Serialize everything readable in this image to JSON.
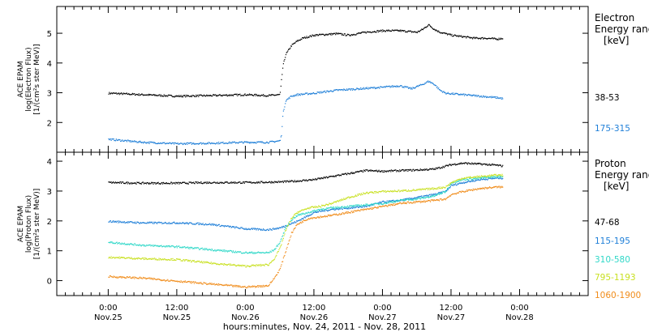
{
  "chart_data": [
    {
      "type": "scatter",
      "ylabel": [
        "ACE EPAM",
        "log(Electron Flux)",
        "[1/(cm²s ster MeV)]"
      ],
      "ylim": [
        1.0,
        5.9
      ],
      "yticks": [
        2,
        3,
        4,
        5
      ],
      "legend_title": [
        "Electron",
        "Energy range",
        "[keV]"
      ],
      "grid": false,
      "series": [
        {
          "name": "38-53",
          "color": "#000000",
          "x": [
            0,
            12,
            24,
            36,
            48,
            56,
            60,
            61,
            62,
            64,
            66,
            68,
            72,
            80,
            84,
            90,
            96,
            102,
            108,
            110,
            112,
            114,
            116,
            118,
            120,
            124,
            128,
            132,
            136,
            138
          ],
          "y": [
            3.0,
            2.95,
            2.9,
            2.92,
            2.95,
            2.92,
            2.95,
            3.9,
            4.3,
            4.6,
            4.75,
            4.85,
            4.95,
            5.0,
            4.95,
            5.05,
            5.1,
            5.1,
            5.05,
            5.15,
            5.3,
            5.15,
            5.05,
            5.0,
            4.95,
            4.9,
            4.85,
            4.85,
            4.82,
            4.85
          ]
        },
        {
          "name": "175-315",
          "color": "#1f7fd8",
          "x": [
            0,
            12,
            24,
            36,
            48,
            56,
            60,
            60.5,
            61,
            62,
            64,
            66,
            72,
            80,
            88,
            96,
            102,
            106,
            110,
            112,
            114,
            116,
            118,
            124,
            130,
            136,
            138
          ],
          "y": [
            1.45,
            1.35,
            1.3,
            1.32,
            1.35,
            1.35,
            1.4,
            1.6,
            2.3,
            2.75,
            2.9,
            2.95,
            3.0,
            3.1,
            3.15,
            3.2,
            3.25,
            3.15,
            3.3,
            3.4,
            3.3,
            3.1,
            3.0,
            2.95,
            2.9,
            2.85,
            2.82
          ]
        }
      ]
    },
    {
      "type": "scatter",
      "ylabel": [
        "ACE EPAM",
        "log(Proton Flux)",
        "[1/(cm²s ster MeV)]"
      ],
      "ylim": [
        -0.5,
        4.3
      ],
      "yticks": [
        0,
        1,
        2,
        3,
        4
      ],
      "legend_title": [
        "Proton",
        "Energy range",
        "[keV]"
      ],
      "grid": false,
      "series": [
        {
          "name": "47-68",
          "color": "#000000",
          "x": [
            0,
            12,
            24,
            36,
            48,
            60,
            66,
            72,
            84,
            90,
            96,
            108,
            114,
            120,
            124,
            130,
            136,
            138
          ],
          "y": [
            3.3,
            3.28,
            3.28,
            3.3,
            3.3,
            3.32,
            3.35,
            3.4,
            3.6,
            3.7,
            3.68,
            3.72,
            3.75,
            3.9,
            3.95,
            3.92,
            3.88,
            3.85
          ]
        },
        {
          "name": "115-195",
          "color": "#1f7fd8",
          "x": [
            0,
            12,
            24,
            36,
            48,
            56,
            60,
            66,
            72,
            78,
            84,
            90,
            96,
            102,
            108,
            114,
            118,
            120,
            124,
            130,
            136,
            138
          ],
          "y": [
            2.0,
            1.95,
            1.95,
            1.9,
            1.75,
            1.72,
            1.78,
            2.0,
            2.3,
            2.4,
            2.45,
            2.5,
            2.65,
            2.7,
            2.8,
            2.9,
            3.0,
            3.2,
            3.3,
            3.4,
            3.45,
            3.45
          ]
        },
        {
          "name": "310-580",
          "color": "#30d8c8",
          "x": [
            0,
            12,
            24,
            36,
            48,
            56,
            58,
            60,
            62,
            64,
            66,
            70,
            74,
            78,
            84,
            90,
            96,
            102,
            108,
            114,
            118,
            120,
            124,
            130,
            136,
            138
          ],
          "y": [
            1.3,
            1.2,
            1.15,
            1.05,
            0.95,
            0.95,
            1.05,
            1.3,
            1.8,
            2.05,
            2.2,
            2.3,
            2.4,
            2.45,
            2.5,
            2.55,
            2.6,
            2.7,
            2.75,
            2.85,
            3.0,
            3.3,
            3.4,
            3.45,
            3.5,
            3.5
          ]
        },
        {
          "name": "795-1193",
          "color": "#c8e020",
          "x": [
            0,
            12,
            24,
            36,
            48,
            56,
            58,
            60,
            62,
            64,
            66,
            70,
            74,
            78,
            84,
            90,
            96,
            102,
            108,
            114,
            118,
            120,
            124,
            130,
            136,
            138
          ],
          "y": [
            0.8,
            0.75,
            0.72,
            0.6,
            0.5,
            0.55,
            0.75,
            1.1,
            1.7,
            2.1,
            2.3,
            2.45,
            2.5,
            2.6,
            2.8,
            2.95,
            3.0,
            3.02,
            3.05,
            3.1,
            3.15,
            3.3,
            3.45,
            3.5,
            3.55,
            3.55
          ]
        },
        {
          "name": "1060-1900",
          "color": "#f08c1a",
          "x": [
            0,
            12,
            24,
            36,
            48,
            56,
            58,
            60,
            62,
            64,
            66,
            70,
            74,
            78,
            84,
            90,
            96,
            102,
            108,
            114,
            118,
            120,
            124,
            130,
            136,
            138
          ],
          "y": [
            0.15,
            0.1,
            0.0,
            -0.1,
            -0.2,
            -0.15,
            0.1,
            0.4,
            1.0,
            1.6,
            1.9,
            2.1,
            2.15,
            2.2,
            2.3,
            2.4,
            2.5,
            2.6,
            2.65,
            2.7,
            2.75,
            2.9,
            3.0,
            3.1,
            3.15,
            3.15
          ]
        }
      ]
    }
  ],
  "x_axis": {
    "range_hours": [
      -18,
      168
    ],
    "ticks": [
      {
        "hour": 0,
        "time": "0:00",
        "date": "Nov.25"
      },
      {
        "hour": 24,
        "time": "12:00",
        "date": "Nov.25"
      },
      {
        "hour": 48,
        "time": "0:00",
        "date": "Nov.26"
      },
      {
        "hour": 72,
        "time": "12:00",
        "date": "Nov.26"
      },
      {
        "hour": 96,
        "time": "0:00",
        "date": "Nov.27"
      },
      {
        "hour": 120,
        "time": "12:00",
        "date": "Nov.27"
      },
      {
        "hour": 144,
        "time": "0:00",
        "date": "Nov.28"
      }
    ],
    "label": "hours:minutes, Nov. 24, 2011 - Nov. 28, 2011"
  }
}
